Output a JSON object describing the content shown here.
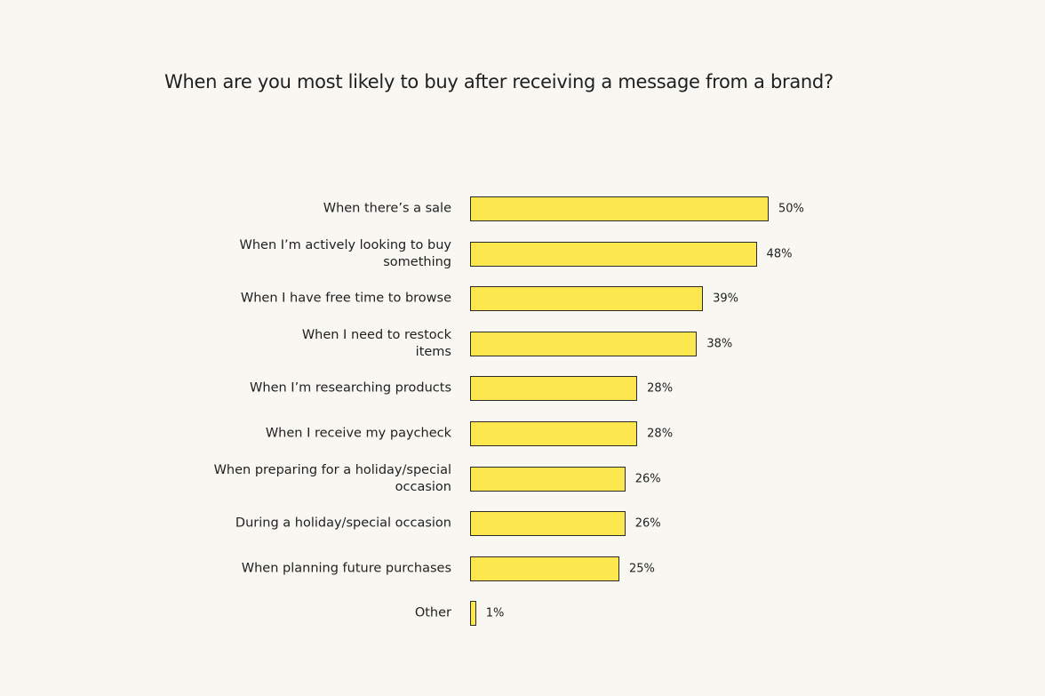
{
  "chart_data": {
    "type": "bar",
    "orientation": "horizontal",
    "title": "When are you most likely to buy after receiving a message from a brand?",
    "categories": [
      "When there’s a sale",
      "When I’m actively looking to buy\nsomething",
      "When I have free time to browse",
      "When I need to restock\nitems",
      "When I’m researching products",
      "When I receive my paycheck",
      "When preparing for a holiday/special\noccasion",
      "During a holiday/special occasion",
      "When planning future purchases",
      "Other"
    ],
    "values": [
      50,
      48,
      39,
      38,
      28,
      28,
      26,
      26,
      25,
      1
    ],
    "value_labels": [
      "50%",
      "48%",
      "39%",
      "38%",
      "28%",
      "28%",
      "26%",
      "26%",
      "25%",
      "1%"
    ],
    "color": "#fde74f"
  }
}
